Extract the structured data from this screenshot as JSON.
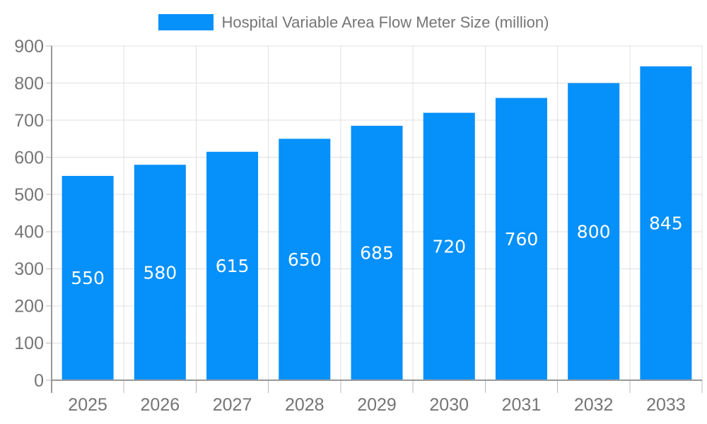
{
  "chart_data": {
    "type": "bar",
    "title": "Hospital Variable Area Flow Meter Size (million)",
    "categories": [
      "2025",
      "2026",
      "2027",
      "2028",
      "2029",
      "2030",
      "2031",
      "2032",
      "2033"
    ],
    "series": [
      {
        "name": "Hospital Variable Area Flow Meter Size (million)",
        "values": [
          550,
          580,
          615,
          650,
          685,
          720,
          760,
          800,
          845
        ]
      }
    ],
    "xlabel": "",
    "ylabel": "",
    "ylim": [
      0,
      900
    ],
    "ytick_step": 100,
    "ytick_labels": [
      "0",
      "100",
      "200",
      "300",
      "400",
      "500",
      "600",
      "700",
      "800",
      "900"
    ],
    "grid": true,
    "legend_position": "top",
    "value_labels_shown": true,
    "colors": {
      "bar": "#0590fa",
      "grid": "#e0e0e0",
      "axis_line": "#999999",
      "tick": "#b8b8b8",
      "axis_label": "#757575",
      "legend_label": "#757575",
      "value_label": "#ffffff",
      "background": "#ffffff"
    }
  }
}
